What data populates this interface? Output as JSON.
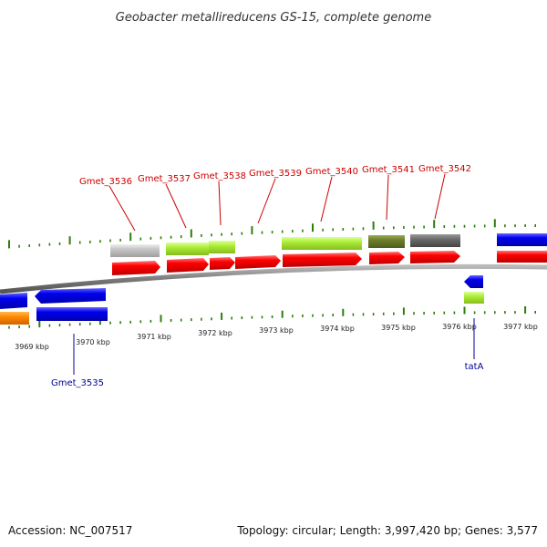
{
  "title": "Geobacter metallireducens GS-15, complete genome",
  "footer": {
    "accession": "Accession: NC_007517",
    "summary": "Topology: circular; Length: 3,997,420 bp; Genes: 3,577"
  },
  "scale": {
    "ticks": [
      "3969 kbp",
      "3970 kbp",
      "3971 kbp",
      "3972 kbp",
      "3973 kbp",
      "3974 kbp",
      "3975 kbp",
      "3976 kbp",
      "3977 kbp"
    ]
  },
  "labels": {
    "top": [
      "Gmet_3536",
      "Gmet_3537",
      "Gmet_3538",
      "Gmet_3539",
      "Gmet_3540",
      "Gmet_3541",
      "Gmet_3542"
    ],
    "bottom": [
      "Gmet_3535",
      "tatA"
    ]
  },
  "colors": {
    "gene": "#ee0000",
    "reverse_gene": "#0000dd",
    "backbone": "#7a7a7a",
    "tick": "#2e7d0e",
    "cog_lime": "#aaee33",
    "cog_olive": "#6b7d2a",
    "cog_gray": "#6a6a6a",
    "cog_lightgray": "#c4c4c4",
    "cog_orange": "#ff8800",
    "label_forward": "#cc0000",
    "label_reverse": "#000099"
  }
}
